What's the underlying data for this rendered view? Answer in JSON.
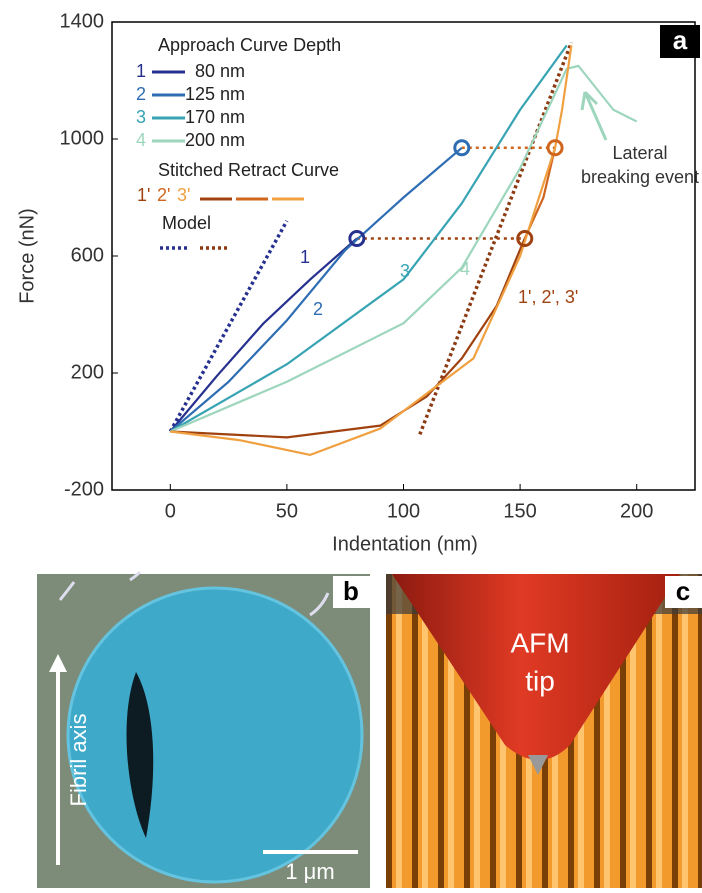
{
  "chart_data": {
    "type": "line",
    "panel": "a",
    "xlabel": "Indentation (nm)",
    "ylabel": "Force (nN)",
    "xlim": [
      -25,
      225
    ],
    "ylim": [
      -200,
      1400
    ],
    "xticks": [
      0,
      50,
      100,
      150,
      200
    ],
    "yticks": [
      -200,
      200,
      600,
      1000,
      1400
    ],
    "legend_title": "Approach Curve Depth",
    "retract_title": "Stitched Retract Curve",
    "model_title": "Model",
    "series": [
      {
        "label": "1",
        "name": "80 nm",
        "color": "#26318f",
        "x": [
          0,
          20,
          40,
          60,
          80
        ],
        "y": [
          0,
          190,
          370,
          520,
          660
        ]
      },
      {
        "label": "2",
        "name": "125 nm",
        "color": "#2e6db3",
        "x": [
          0,
          25,
          50,
          75,
          100,
          125
        ],
        "y": [
          0,
          170,
          380,
          620,
          800,
          970
        ]
      },
      {
        "label": "3",
        "name": "170 nm",
        "color": "#37a3b3",
        "x": [
          0,
          50,
          100,
          125,
          150,
          170
        ],
        "y": [
          0,
          230,
          520,
          780,
          1100,
          1320
        ]
      },
      {
        "label": "4",
        "name": "200 nm",
        "color": "#9dd6bd",
        "x": [
          0,
          50,
          100,
          125,
          150,
          170,
          175,
          190,
          200
        ],
        "y": [
          0,
          170,
          370,
          560,
          900,
          1240,
          1250,
          1100,
          1060
        ]
      },
      {
        "name": "1'",
        "color": "#a0420f",
        "x": [
          152,
          140,
          125,
          110,
          90,
          50,
          0
        ],
        "y": [
          660,
          430,
          250,
          120,
          20,
          -20,
          0
        ]
      },
      {
        "name": "2'",
        "color": "#d0661e",
        "x": [
          165,
          160,
          152
        ],
        "y": [
          970,
          800,
          660
        ]
      },
      {
        "name": "3'",
        "color": "#f0a040",
        "x": [
          172,
          168,
          165,
          150,
          130,
          90,
          60,
          30,
          0
        ],
        "y": [
          1320,
          1100,
          970,
          600,
          250,
          10,
          -80,
          -30,
          0
        ]
      }
    ],
    "models": [
      {
        "color": "#26318f",
        "x": [
          0,
          50
        ],
        "y": [
          0,
          720
        ]
      },
      {
        "color": "#8b3a12",
        "x": [
          107,
          172
        ],
        "y": [
          -10,
          1330
        ]
      }
    ],
    "guides": [
      {
        "color": "#a0420f",
        "x": [
          80,
          152
        ],
        "y": [
          660,
          660
        ]
      },
      {
        "color": "#d0661e",
        "x": [
          125,
          165
        ],
        "y": [
          970,
          970
        ]
      }
    ],
    "markers": [
      {
        "color": "#26318f",
        "x": 80,
        "y": 660
      },
      {
        "color": "#2e6db3",
        "x": 125,
        "y": 970
      },
      {
        "color": "#a0420f",
        "x": 152,
        "y": 660
      },
      {
        "color": "#d0661e",
        "x": 165,
        "y": 970
      }
    ],
    "annotations": [
      "1",
      "2",
      "3",
      "4",
      "1', 2', 3'",
      "Lateral",
      "breaking event"
    ]
  },
  "panels": {
    "b": {
      "label": "b",
      "axis": "Fibril axis",
      "scale": "1 μm"
    },
    "c": {
      "label": "c",
      "tip": [
        "AFM",
        "tip"
      ]
    }
  }
}
